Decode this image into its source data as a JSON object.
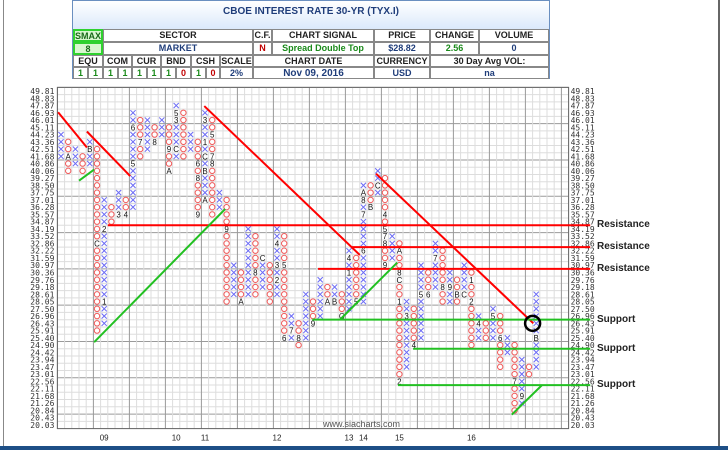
{
  "header": {
    "title": "CBOE INTEREST RATE 30-YR (TYX.I)",
    "smax_label": "SMAX",
    "smax_value": "8",
    "sector_label": "SECTOR",
    "sector_value": "MARKET",
    "cf_label": "C.F.",
    "cf_value": "N",
    "signal_label": "CHART SIGNAL",
    "signal_value": "Spread Double Top",
    "price_label": "PRICE",
    "price_value": "$28.82",
    "change_label": "CHANGE",
    "change_value": "2.56",
    "volume_label": "VOLUME",
    "volume_value": "0",
    "ratings": [
      {
        "label": "EQU",
        "a": "1",
        "b": "1"
      },
      {
        "label": "COM",
        "a": "1",
        "b": "1"
      },
      {
        "label": "CUR",
        "a": "1",
        "b": "1"
      },
      {
        "label": "BND",
        "a": "1",
        "b": "0"
      },
      {
        "label": "CSH",
        "a": "1",
        "b": "0"
      }
    ],
    "scale_label": "SCALE",
    "scale_value": "2%",
    "date_label": "CHART DATE",
    "date_value": "Nov 09, 2016",
    "currency_label": "CURRENCY",
    "currency_value": "USD",
    "avgvol_label": "30 Day Avg VOL:",
    "avgvol_value": "na"
  },
  "watermark": "www.siacharts.com",
  "annotations": [
    {
      "text": "Resistance",
      "price": 34.53
    },
    {
      "text": "Resistance",
      "price": 32.54
    },
    {
      "text": "Resistance",
      "price": 30.66
    },
    {
      "text": "Support",
      "price": 26.7
    },
    {
      "text": "Support",
      "price": 24.66
    },
    {
      "text": "Support",
      "price": 22.33
    }
  ],
  "colors": {
    "x": "#6b6bf5",
    "o": "#f05a5a",
    "resistance": "#ff0000",
    "support": "#22c022",
    "grid": "#dddddd",
    "grid_major": "#9a9a9a"
  },
  "chart_data": {
    "type": "point-and-figure",
    "title": "CBOE INTEREST RATE 30-YR (TYX.I)",
    "box_scale": "2%",
    "price_levels": [
      49.81,
      48.83,
      47.87,
      46.93,
      46.01,
      45.11,
      44.23,
      43.36,
      42.51,
      41.68,
      40.86,
      40.06,
      39.27,
      38.5,
      37.75,
      37.01,
      36.28,
      35.57,
      34.87,
      34.19,
      33.52,
      32.86,
      32.22,
      31.59,
      30.97,
      30.36,
      29.76,
      29.18,
      28.61,
      28.05,
      27.5,
      26.96,
      26.43,
      25.91,
      25.4,
      24.9,
      24.42,
      23.94,
      23.47,
      23.01,
      22.56,
      22.11,
      21.68,
      21.26,
      20.84,
      20.43,
      20.03
    ],
    "x_labels": [
      {
        "col": 6,
        "label": "09"
      },
      {
        "col": 16,
        "label": "10"
      },
      {
        "col": 20,
        "label": "11"
      },
      {
        "col": 30,
        "label": "12"
      },
      {
        "col": 40,
        "label": "13"
      },
      {
        "col": 42,
        "label": "14"
      },
      {
        "col": 47,
        "label": "15"
      },
      {
        "col": 57,
        "label": "16"
      }
    ],
    "columns": [
      {
        "t": "X",
        "hi": 44.23,
        "lo": 41.68,
        "lbl": []
      },
      {
        "t": "O",
        "hi": 43.36,
        "lo": 40.06,
        "lbl": [
          [
            41.68,
            "A"
          ]
        ]
      },
      {
        "t": "X",
        "hi": 42.51,
        "lo": 40.86,
        "lbl": []
      },
      {
        "t": "O",
        "hi": 41.68,
        "lo": 40.06,
        "lbl": []
      },
      {
        "t": "X",
        "hi": 43.36,
        "lo": 40.86,
        "lbl": [
          [
            42.51,
            "B"
          ]
        ]
      },
      {
        "t": "O",
        "hi": 42.51,
        "lo": 25.91,
        "lbl": [
          [
            32.86,
            "C"
          ]
        ]
      },
      {
        "t": "X",
        "hi": 37.01,
        "lo": 26.43,
        "lbl": [
          [
            34.19,
            "2"
          ],
          [
            28.05,
            "1"
          ]
        ]
      },
      {
        "t": "O",
        "hi": 36.28,
        "lo": 34.87,
        "lbl": []
      },
      {
        "t": "X",
        "hi": 37.75,
        "lo": 35.57,
        "lbl": [
          [
            35.57,
            "3"
          ]
        ]
      },
      {
        "t": "O",
        "hi": 37.01,
        "lo": 35.57,
        "lbl": [
          [
            35.57,
            "4"
          ]
        ]
      },
      {
        "t": "X",
        "hi": 46.93,
        "lo": 36.28,
        "lbl": [
          [
            45.11,
            "6"
          ],
          [
            40.86,
            "5"
          ]
        ]
      },
      {
        "t": "O",
        "hi": 46.01,
        "lo": 41.68,
        "lbl": [
          [
            43.36,
            "7"
          ]
        ]
      },
      {
        "t": "X",
        "hi": 46.01,
        "lo": 42.51,
        "lbl": []
      },
      {
        "t": "O",
        "hi": 45.11,
        "lo": 43.36,
        "lbl": [
          [
            43.36,
            "8"
          ]
        ]
      },
      {
        "t": "X",
        "hi": 46.01,
        "lo": 44.23,
        "lbl": []
      },
      {
        "t": "O",
        "hi": 45.11,
        "lo": 40.06,
        "lbl": [
          [
            42.51,
            "9"
          ],
          [
            40.06,
            "A"
          ]
        ]
      },
      {
        "t": "X",
        "hi": 47.87,
        "lo": 41.68,
        "lbl": [
          [
            46.93,
            "5"
          ],
          [
            46.01,
            "3"
          ],
          [
            42.51,
            "C"
          ]
        ]
      },
      {
        "t": "O",
        "hi": 46.93,
        "lo": 41.68,
        "lbl": []
      },
      {
        "t": "X",
        "hi": 44.23,
        "lo": 42.51,
        "lbl": []
      },
      {
        "t": "O",
        "hi": 43.36,
        "lo": 35.57,
        "lbl": [
          [
            40.86,
            "6"
          ],
          [
            39.27,
            "8"
          ],
          [
            35.57,
            "9"
          ]
        ]
      },
      {
        "t": "X",
        "hi": 46.93,
        "lo": 37.01,
        "lbl": [
          [
            46.01,
            "3"
          ],
          [
            43.36,
            "1"
          ],
          [
            41.68,
            "C"
          ],
          [
            40.06,
            "B"
          ],
          [
            37.01,
            "A"
          ]
        ]
      },
      {
        "t": "O",
        "hi": 46.01,
        "lo": 35.57,
        "lbl": [
          [
            44.23,
            "5"
          ],
          [
            41.68,
            "7"
          ],
          [
            40.86,
            "8"
          ]
        ]
      },
      {
        "t": "X",
        "hi": 37.75,
        "lo": 36.28,
        "lbl": []
      },
      {
        "t": "O",
        "hi": 37.01,
        "lo": 28.05,
        "lbl": [
          [
            34.19,
            "9"
          ]
        ]
      },
      {
        "t": "X",
        "hi": 30.97,
        "lo": 28.61,
        "lbl": []
      },
      {
        "t": "O",
        "hi": 30.36,
        "lo": 28.05,
        "lbl": [
          [
            28.05,
            "A"
          ]
        ]
      },
      {
        "t": "X",
        "hi": 34.19,
        "lo": 28.61,
        "lbl": []
      },
      {
        "t": "O",
        "hi": 33.52,
        "lo": 28.61,
        "lbl": [
          [
            30.36,
            "8"
          ]
        ]
      },
      {
        "t": "X",
        "hi": 31.59,
        "lo": 29.18,
        "lbl": [
          [
            31.59,
            "C"
          ]
        ]
      },
      {
        "t": "O",
        "hi": 30.97,
        "lo": 28.05,
        "lbl": []
      },
      {
        "t": "X",
        "hi": 34.19,
        "lo": 28.61,
        "lbl": [
          [
            32.86,
            "4"
          ],
          [
            30.97,
            "3"
          ],
          [
            29.76,
            "2"
          ]
        ]
      },
      {
        "t": "O",
        "hi": 33.52,
        "lo": 25.4,
        "lbl": [
          [
            30.97,
            "5"
          ],
          [
            25.4,
            "6"
          ]
        ]
      },
      {
        "t": "X",
        "hi": 26.96,
        "lo": 25.4,
        "lbl": [
          [
            25.91,
            "7"
          ]
        ]
      },
      {
        "t": "O",
        "hi": 26.43,
        "lo": 24.9,
        "lbl": [
          [
            25.4,
            "8"
          ]
        ]
      },
      {
        "t": "X",
        "hi": 28.61,
        "lo": 25.4,
        "lbl": []
      },
      {
        "t": "O",
        "hi": 28.05,
        "lo": 26.43,
        "lbl": [
          [
            26.43,
            "9"
          ]
        ]
      },
      {
        "t": "X",
        "hi": 29.76,
        "lo": 26.96,
        "lbl": []
      },
      {
        "t": "O",
        "hi": 29.18,
        "lo": 28.05,
        "lbl": [
          [
            28.05,
            "A"
          ]
        ]
      },
      {
        "t": "X",
        "hi": 29.18,
        "lo": 28.05,
        "lbl": [
          [
            28.05,
            "B"
          ]
        ]
      },
      {
        "t": "O",
        "hi": 28.61,
        "lo": 26.96,
        "lbl": [
          [
            26.96,
            "C"
          ]
        ]
      },
      {
        "t": "X",
        "hi": 32.22,
        "lo": 27.5,
        "lbl": [
          [
            31.59,
            "4"
          ],
          [
            30.36,
            "1"
          ]
        ]
      },
      {
        "t": "O",
        "hi": 31.59,
        "lo": 28.05,
        "lbl": [
          [
            28.05,
            "5"
          ]
        ]
      },
      {
        "t": "X",
        "hi": 38.5,
        "lo": 28.05,
        "lbl": [
          [
            37.75,
            "A"
          ],
          [
            37.01,
            "8"
          ],
          [
            35.57,
            "7"
          ],
          [
            32.22,
            "6"
          ]
        ]
      },
      {
        "t": "O",
        "hi": 38.5,
        "lo": 36.28,
        "lbl": [
          [
            36.28,
            "B"
          ]
        ]
      },
      {
        "t": "X",
        "hi": 40.06,
        "lo": 37.75,
        "lbl": [
          [
            38.5,
            "C"
          ]
        ]
      },
      {
        "t": "O",
        "hi": 39.27,
        "lo": 30.97,
        "lbl": [
          [
            35.57,
            "4"
          ],
          [
            34.19,
            "5"
          ],
          [
            33.52,
            "7"
          ],
          [
            32.86,
            "8"
          ],
          [
            30.97,
            "9"
          ]
        ]
      },
      {
        "t": "X",
        "hi": 33.52,
        "lo": 31.59,
        "lbl": []
      },
      {
        "t": "O",
        "hi": 32.86,
        "lo": 22.56,
        "lbl": [
          [
            32.22,
            "A"
          ],
          [
            30.36,
            "8"
          ],
          [
            29.76,
            "C"
          ],
          [
            28.05,
            "1"
          ],
          [
            22.56,
            "2"
          ]
        ]
      },
      {
        "t": "X",
        "hi": 28.05,
        "lo": 23.47,
        "lbl": [
          [
            26.96,
            "3"
          ]
        ]
      },
      {
        "t": "O",
        "hi": 27.5,
        "lo": 24.9,
        "lbl": [
          [
            24.9,
            "4"
          ]
        ]
      },
      {
        "t": "X",
        "hi": 30.97,
        "lo": 25.4,
        "lbl": [
          [
            28.61,
            "5"
          ]
        ]
      },
      {
        "t": "O",
        "hi": 30.36,
        "lo": 28.61,
        "lbl": [
          [
            28.61,
            "6"
          ]
        ]
      },
      {
        "t": "X",
        "hi": 32.86,
        "lo": 29.18,
        "lbl": [
          [
            31.59,
            "7"
          ]
        ]
      },
      {
        "t": "O",
        "hi": 32.22,
        "lo": 28.05,
        "lbl": [
          [
            29.18,
            "8"
          ]
        ]
      },
      {
        "t": "X",
        "hi": 30.36,
        "lo": 28.05,
        "lbl": [
          [
            29.18,
            "9"
          ]
        ]
      },
      {
        "t": "O",
        "hi": 29.76,
        "lo": 28.05,
        "lbl": [
          [
            28.61,
            "B"
          ]
        ]
      },
      {
        "t": "X",
        "hi": 30.97,
        "lo": 28.61,
        "lbl": [
          [
            28.61,
            "C"
          ]
        ]
      },
      {
        "t": "O",
        "hi": 30.36,
        "lo": 24.9,
        "lbl": [
          [
            29.76,
            "1"
          ],
          [
            28.05,
            "2"
          ]
        ]
      },
      {
        "t": "X",
        "hi": 26.96,
        "lo": 25.4,
        "lbl": [
          [
            26.43,
            "4"
          ]
        ]
      },
      {
        "t": "O",
        "hi": 26.43,
        "lo": 25.4,
        "lbl": []
      },
      {
        "t": "X",
        "hi": 27.5,
        "lo": 25.4,
        "lbl": [
          [
            26.96,
            "5"
          ]
        ]
      },
      {
        "t": "O",
        "hi": 26.96,
        "lo": 23.47,
        "lbl": [
          [
            25.4,
            "6"
          ]
        ]
      },
      {
        "t": "X",
        "hi": 25.4,
        "lo": 24.42,
        "lbl": []
      },
      {
        "t": "O",
        "hi": 24.9,
        "lo": 20.84,
        "lbl": [
          [
            22.56,
            "7"
          ]
        ]
      },
      {
        "t": "X",
        "hi": 23.94,
        "lo": 21.26,
        "lbl": [
          [
            21.68,
            "9"
          ]
        ]
      },
      {
        "t": "O",
        "hi": 23.47,
        "lo": 23.01,
        "lbl": [
          [
            22.56,
            "A"
          ]
        ]
      },
      {
        "t": "X",
        "hi": 28.61,
        "lo": 23.47,
        "lbl": [
          [
            25.4,
            "B"
          ]
        ]
      }
    ],
    "trendlines": [
      {
        "kind": "resistance",
        "from": [
          -0.4,
          47.0
        ],
        "to": [
          3.6,
          42.7
        ]
      },
      {
        "kind": "resistance",
        "from": [
          3.6,
          44.6
        ],
        "to": [
          9.6,
          39.5
        ]
      },
      {
        "kind": "resistance",
        "from": [
          19.9,
          47.8
        ],
        "to": [
          41.5,
          31.85
        ]
      },
      {
        "kind": "resistance",
        "from": [
          43.75,
          39.75
        ],
        "to": [
          65.6,
          26.43
        ]
      },
      {
        "kind": "resistance",
        "from": [
          6.5,
          34.53
        ],
        "to": [
          73.5,
          34.53
        ]
      },
      {
        "kind": "resistance",
        "from": [
          40.4,
          32.54
        ],
        "to": [
          73.5,
          32.54
        ]
      },
      {
        "kind": "resistance",
        "from": [
          35.7,
          30.66
        ],
        "to": [
          73.5,
          30.66
        ]
      },
      {
        "kind": "support",
        "from": [
          2.5,
          39.0
        ],
        "to": [
          4.6,
          40.2
        ]
      },
      {
        "kind": "support",
        "from": [
          4.6,
          25.1
        ],
        "to": [
          22.8,
          36.1
        ]
      },
      {
        "kind": "support",
        "from": [
          38.75,
          26.7
        ],
        "to": [
          46.7,
          31.2
        ]
      },
      {
        "kind": "support",
        "from": [
          34.9,
          26.7
        ],
        "to": [
          73.5,
          26.7
        ]
      },
      {
        "kind": "support",
        "from": [
          48.9,
          24.66
        ],
        "to": [
          73.5,
          24.66
        ]
      },
      {
        "kind": "support",
        "from": [
          46.8,
          22.33
        ],
        "to": [
          73.5,
          22.33
        ]
      },
      {
        "kind": "support",
        "from": [
          62.6,
          20.6
        ],
        "to": [
          66.8,
          22.33
        ]
      }
    ],
    "highlight": {
      "col": 65.5,
      "price": 26.43
    }
  }
}
